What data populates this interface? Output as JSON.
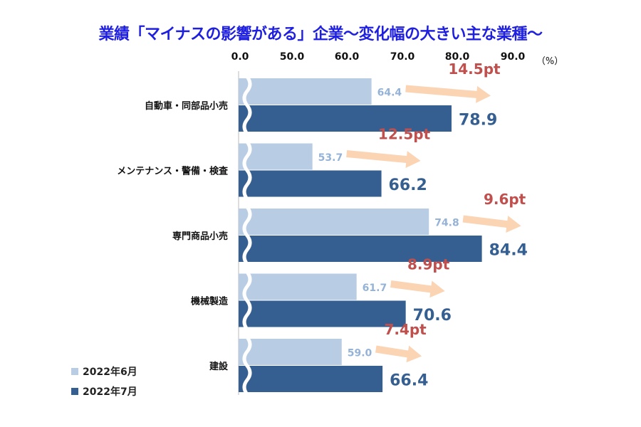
{
  "chart_data": {
    "type": "bar",
    "orientation": "horizontal",
    "title": "業績「マイナスの影響がある」企業～変化幅の大きい主な業種～",
    "unit_label": "（%）",
    "x_ticks": [
      "0.0",
      "50.0",
      "60.0",
      "70.0",
      "80.0",
      "90.0"
    ],
    "axis_break": "between 0.0 and 50.0",
    "categories": [
      "自動車・同部品小売",
      "メンテナンス・警備・検査",
      "専門商品小売",
      "機械製造",
      "建設"
    ],
    "series": [
      {
        "name": "2022年6月",
        "color": "#b8cce4",
        "values": [
          64.4,
          53.7,
          74.8,
          61.7,
          59.0
        ],
        "labels": [
          "64.4",
          "53.7",
          "74.8",
          "61.7",
          "59.0"
        ]
      },
      {
        "name": "2022年7月",
        "color": "#365f91",
        "values": [
          78.9,
          66.2,
          84.4,
          70.6,
          66.4
        ],
        "labels": [
          "78.9",
          "66.2",
          "84.4",
          "70.6",
          "66.4"
        ]
      }
    ],
    "change_labels": [
      "14.5pt",
      "12.5pt",
      "9.6pt",
      "8.9pt",
      "7.4pt"
    ],
    "change_label_color": "#c0504d",
    "arrow_color": "#fbd4b4",
    "legend_position": "bottom-left"
  }
}
